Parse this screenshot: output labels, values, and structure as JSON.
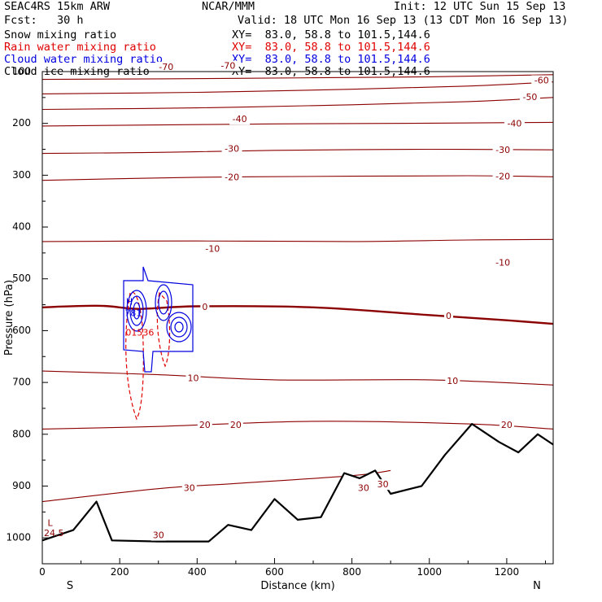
{
  "header": {
    "model": "SEAC4RS 15km ARW",
    "org": "NCAR/MMM",
    "init": "Init: 12 UTC Sun 15 Sep 13",
    "fcst": "Fcst:   30 h",
    "valid": "Valid: 18 UTC Mon 16 Sep 13 (13 CDT Mon 16 Sep 13)"
  },
  "fields": [
    {
      "name": "Snow mixing ratio",
      "xy": "XY=  83.0, 58.8 to 101.5,144.6",
      "color": "#000000"
    },
    {
      "name": "Rain water mixing ratio",
      "xy": "XY=  83.0, 58.8 to 101.5,144.6",
      "color": "#e00000"
    },
    {
      "name": "Cloud water mixing ratio",
      "xy": "XY=  83.0, 58.8 to 101.5,144.6",
      "color": "#0000e0"
    },
    {
      "name": "Cloud ice mixing ratio",
      "xy": "XY=  83.0, 58.8 to 101.5,144.6",
      "color": "#000000"
    }
  ],
  "chart_data": {
    "type": "line",
    "xlabel": "Distance (km)",
    "ylabel": "Pressure (hPa)",
    "xlim": [
      0,
      1320
    ],
    "ylim": [
      1050,
      100
    ],
    "xticks": [
      0,
      200,
      400,
      600,
      800,
      1000,
      1200
    ],
    "yticks": [
      100,
      200,
      300,
      400,
      500,
      600,
      700,
      800,
      900,
      1000
    ],
    "ends": {
      "left": "S",
      "right": "N"
    },
    "temperature_contours": [
      {
        "level": -70,
        "points": [
          [
            0,
            115
          ],
          [
            300,
            114
          ],
          [
            700,
            112
          ],
          [
            1000,
            110
          ],
          [
            1320,
            106
          ]
        ]
      },
      {
        "level": -60,
        "points": [
          [
            0,
            143
          ],
          [
            400,
            140
          ],
          [
            800,
            134
          ],
          [
            1100,
            128
          ],
          [
            1320,
            120
          ]
        ]
      },
      {
        "level": -50,
        "points": [
          [
            0,
            173
          ],
          [
            400,
            170
          ],
          [
            800,
            164
          ],
          [
            1100,
            158
          ],
          [
            1320,
            150
          ]
        ]
      },
      {
        "level": -40,
        "points": [
          [
            0,
            205
          ],
          [
            300,
            203
          ],
          [
            600,
            201
          ],
          [
            900,
            200
          ],
          [
            1320,
            198
          ]
        ]
      },
      {
        "level": -30,
        "points": [
          [
            0,
            258
          ],
          [
            300,
            256
          ],
          [
            600,
            252
          ],
          [
            1000,
            250
          ],
          [
            1320,
            251
          ]
        ]
      },
      {
        "level": -20,
        "points": [
          [
            0,
            310
          ],
          [
            400,
            304
          ],
          [
            800,
            302
          ],
          [
            1100,
            301
          ],
          [
            1320,
            303
          ]
        ]
      },
      {
        "level": -10,
        "points": [
          [
            0,
            428
          ],
          [
            400,
            427
          ],
          [
            800,
            428
          ],
          [
            1100,
            425
          ],
          [
            1320,
            424
          ]
        ]
      },
      {
        "level": 0,
        "points": [
          [
            0,
            555
          ],
          [
            150,
            552
          ],
          [
            250,
            558
          ],
          [
            400,
            553
          ],
          [
            700,
            555
          ],
          [
            1000,
            570
          ],
          [
            1200,
            580
          ],
          [
            1320,
            587
          ]
        ]
      },
      {
        "level": 10,
        "points": [
          [
            0,
            678
          ],
          [
            300,
            685
          ],
          [
            600,
            695
          ],
          [
            1000,
            695
          ],
          [
            1320,
            705
          ]
        ]
      },
      {
        "level": 20,
        "points": [
          [
            0,
            790
          ],
          [
            300,
            785
          ],
          [
            700,
            775
          ],
          [
            1100,
            780
          ],
          [
            1320,
            790
          ]
        ]
      },
      {
        "level": 30,
        "points": [
          [
            0,
            930
          ],
          [
            300,
            905
          ],
          [
            500,
            895
          ],
          [
            800,
            880
          ],
          [
            900,
            870
          ]
        ]
      }
    ],
    "terrain": [
      [
        0,
        1005
      ],
      [
        80,
        985
      ],
      [
        140,
        930
      ],
      [
        180,
        1005
      ],
      [
        300,
        1007
      ],
      [
        430,
        1007
      ],
      [
        480,
        975
      ],
      [
        540,
        985
      ],
      [
        600,
        925
      ],
      [
        660,
        965
      ],
      [
        720,
        960
      ],
      [
        780,
        875
      ],
      [
        820,
        885
      ],
      [
        860,
        870
      ],
      [
        900,
        915
      ],
      [
        980,
        900
      ],
      [
        1040,
        840
      ],
      [
        1110,
        780
      ],
      [
        1180,
        815
      ],
      [
        1230,
        835
      ],
      [
        1280,
        800
      ],
      [
        1320,
        820
      ]
    ],
    "annotations": [
      {
        "text": "H",
        "x": 225,
        "y": 545,
        "color": "#0000e0"
      },
      {
        "text": "781",
        "x": 235,
        "y": 567,
        "color": "#0000e0"
      },
      {
        "text": "L",
        "x": 20,
        "y": 972,
        "color": "#8b0000"
      },
      {
        "text": "24.5",
        "x": 30,
        "y": 992,
        "color": "#8b0000"
      },
      {
        "text": "01536",
        "x": 252,
        "y": 605,
        "color": "#e00000"
      }
    ],
    "label_positions": [
      {
        "text": "-70",
        "x": 320,
        "y": 92
      },
      {
        "text": "-70",
        "x": 480,
        "y": 90
      },
      {
        "text": "-60",
        "x": 1290,
        "y": 118
      },
      {
        "text": "-50",
        "x": 1260,
        "y": 150
      },
      {
        "text": "-40",
        "x": 510,
        "y": 193
      },
      {
        "text": "-40",
        "x": 1220,
        "y": 201
      },
      {
        "text": "-30",
        "x": 490,
        "y": 250
      },
      {
        "text": "-30",
        "x": 1190,
        "y": 252
      },
      {
        "text": "-20",
        "x": 490,
        "y": 305
      },
      {
        "text": "-20",
        "x": 1190,
        "y": 303
      },
      {
        "text": "-10",
        "x": 440,
        "y": 443
      },
      {
        "text": "-10",
        "x": 1190,
        "y": 470
      },
      {
        "text": "0",
        "x": 420,
        "y": 555
      },
      {
        "text": "0",
        "x": 1050,
        "y": 573
      },
      {
        "text": "10",
        "x": 390,
        "y": 693
      },
      {
        "text": "10",
        "x": 1060,
        "y": 698
      },
      {
        "text": "20",
        "x": 420,
        "y": 783
      },
      {
        "text": "20",
        "x": 500,
        "y": 783
      },
      {
        "text": "20",
        "x": 1200,
        "y": 783
      },
      {
        "text": "30",
        "x": 380,
        "y": 905
      },
      {
        "text": "30",
        "x": 300,
        "y": 996
      },
      {
        "text": "30",
        "x": 830,
        "y": 905
      },
      {
        "text": "30",
        "x": 880,
        "y": 898
      }
    ]
  }
}
